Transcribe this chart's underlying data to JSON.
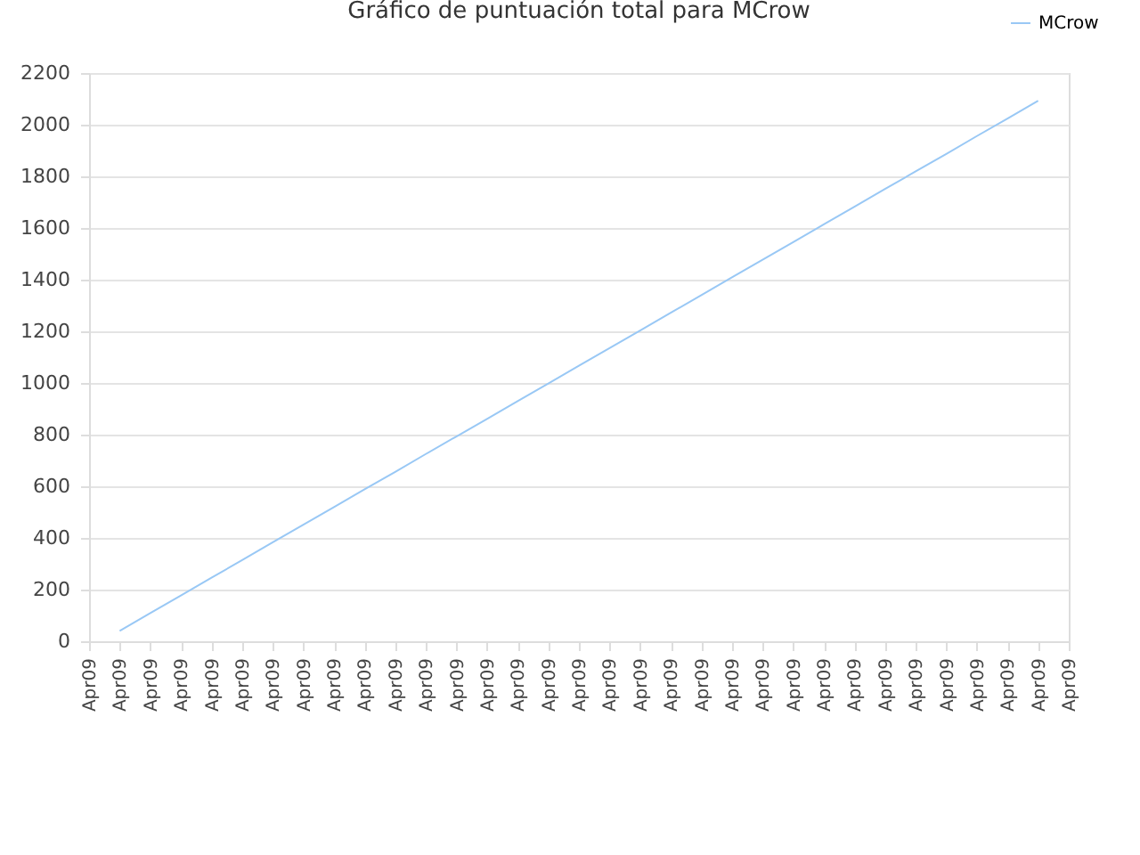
{
  "chart_data": {
    "type": "line",
    "title": "Gráfico de puntuación total para MCrow",
    "categories": [
      "Apr09",
      "Apr09",
      "Apr09",
      "Apr09",
      "Apr09",
      "Apr09",
      "Apr09",
      "Apr09",
      "Apr09",
      "Apr09",
      "Apr09",
      "Apr09",
      "Apr09",
      "Apr09",
      "Apr09",
      "Apr09",
      "Apr09",
      "Apr09",
      "Apr09",
      "Apr09",
      "Apr09",
      "Apr09",
      "Apr09",
      "Apr09",
      "Apr09",
      "Apr09",
      "Apr09",
      "Apr09",
      "Apr09",
      "Apr09",
      "Apr09",
      "Apr09",
      "Apr09"
    ],
    "series": [
      {
        "name": "MCrow",
        "color": "#99c8f5",
        "values": [
          null,
          40,
          109,
          177,
          246,
          314,
          383,
          451,
          519,
          588,
          656,
          725,
          793,
          861,
          930,
          998,
          1067,
          1135,
          1203,
          1272,
          1340,
          1409,
          1477,
          1545,
          1614,
          1682,
          1751,
          1819,
          1887,
          1956,
          2024,
          2093,
          null
        ]
      }
    ],
    "ylim": [
      0,
      2200
    ],
    "yticks": [
      0,
      200,
      400,
      600,
      800,
      1000,
      1200,
      1400,
      1600,
      1800,
      2000,
      2200
    ],
    "grid": "y",
    "legend": "top right",
    "marker": "none",
    "line_style": "solid"
  }
}
